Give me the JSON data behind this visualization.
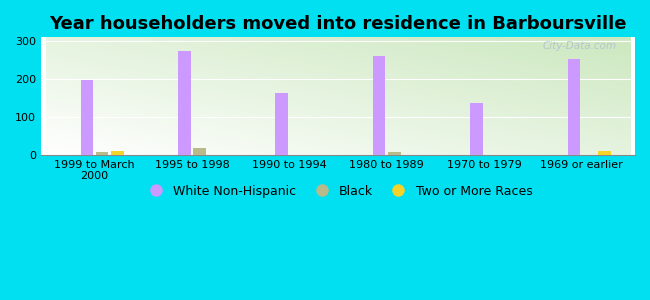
{
  "title": "Year householders moved into residence in Barboursville",
  "categories": [
    "1999 to March\n2000",
    "1995 to 1998",
    "1990 to 1994",
    "1980 to 1989",
    "1970 to 1979",
    "1969 or earlier"
  ],
  "white_non_hispanic": [
    197,
    273,
    163,
    261,
    138,
    252
  ],
  "black": [
    7,
    18,
    0,
    7,
    0,
    0
  ],
  "two_or_more": [
    11,
    0,
    0,
    0,
    0,
    10
  ],
  "bar_width": 0.13,
  "white_color": "#cc99ff",
  "black_color": "#b8ba8a",
  "two_color": "#f5d327",
  "background_color": "#00e0f0",
  "ylim": [
    0,
    310
  ],
  "yticks": [
    0,
    100,
    200,
    300
  ],
  "watermark": "City-Data.com",
  "title_fontsize": 13,
  "tick_fontsize": 8,
  "legend_fontsize": 9
}
